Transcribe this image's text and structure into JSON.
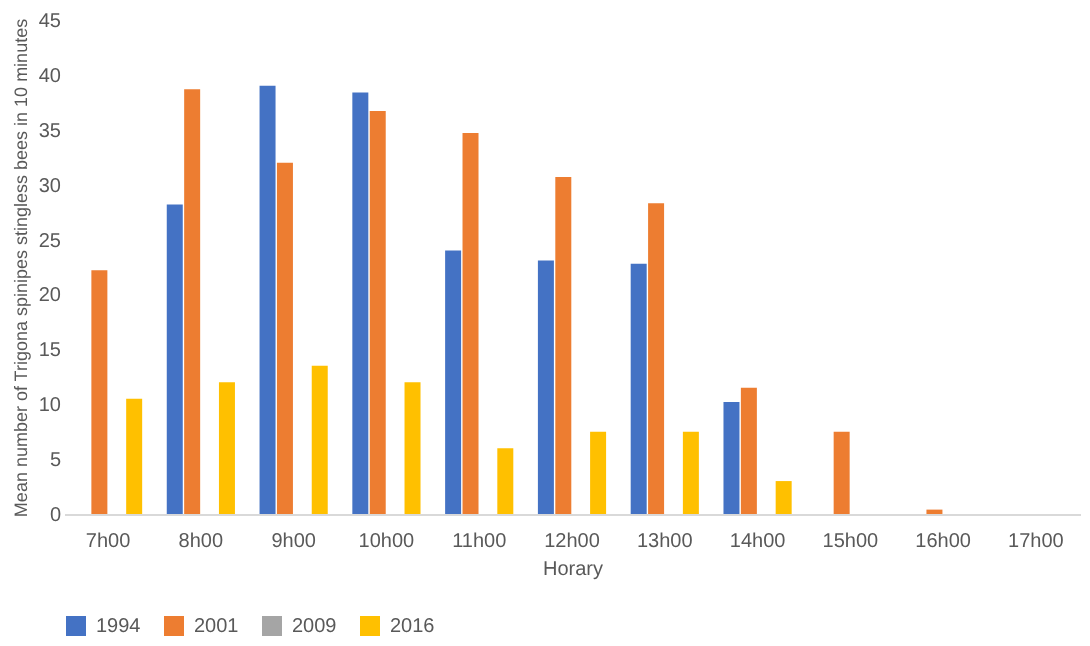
{
  "chart_data": {
    "type": "bar",
    "xlabel": "Horary",
    "ylabel": "Mean number of Trigona spinipes stingless bees in 10 minutes",
    "categories": [
      "7h00",
      "8h00",
      "9h00",
      "10h00",
      "11h00",
      "12h00",
      "13h00",
      "14h00",
      "15h00",
      "16h00",
      "17h00"
    ],
    "series": [
      {
        "name": "1994",
        "color": "#4472c4",
        "values": [
          0,
          28.2,
          39,
          38.4,
          24,
          23.1,
          22.8,
          10.2,
          0,
          0,
          0
        ]
      },
      {
        "name": "2001",
        "color": "#ed7d31",
        "values": [
          22.2,
          38.7,
          32,
          36.7,
          34.7,
          30.7,
          28.3,
          11.5,
          7.5,
          0.4,
          0
        ]
      },
      {
        "name": "2009",
        "color": "#a5a5a5",
        "values": [
          0,
          0,
          0,
          0,
          0,
          0,
          0,
          0,
          0,
          0,
          0
        ]
      },
      {
        "name": "2016",
        "color": "#ffc000",
        "values": [
          10.5,
          12,
          13.5,
          12,
          6,
          7.5,
          7.5,
          3,
          0,
          0,
          0
        ]
      }
    ],
    "ylim": [
      0,
      45
    ],
    "yticks": [
      0,
      5,
      10,
      15,
      20,
      25,
      30,
      35,
      40,
      45
    ],
    "grid": false,
    "legend": "bottom"
  }
}
